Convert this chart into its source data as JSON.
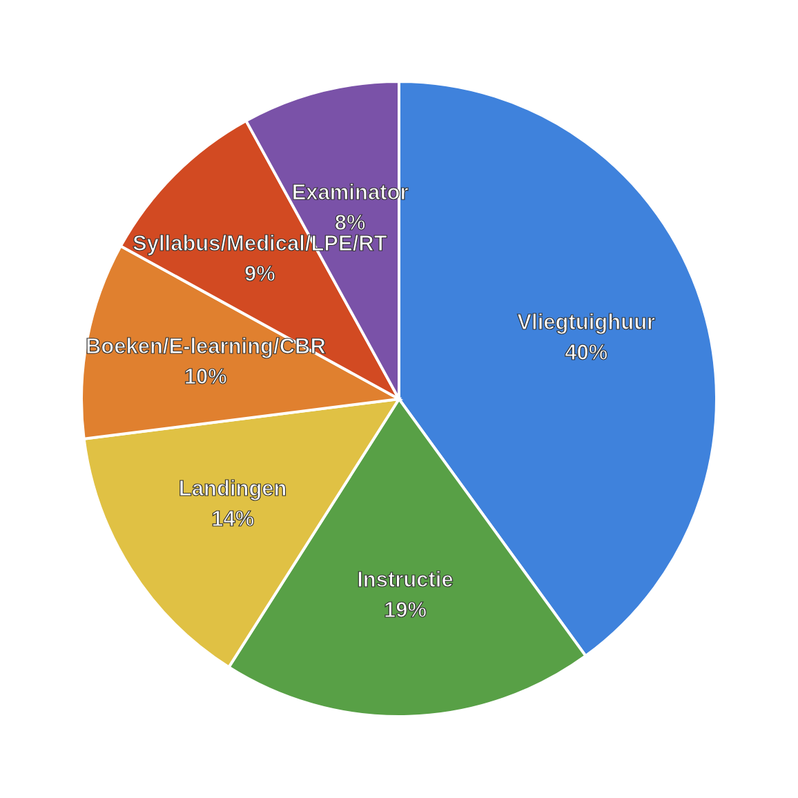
{
  "chart_data": {
    "type": "pie",
    "categories": [
      "Vliegtuighuur",
      "Instructie",
      "Landingen",
      "Boeken/E-learning/CBR",
      "Syllabus/Medical/LPE/RT",
      "Examinator"
    ],
    "values": [
      40,
      19,
      14,
      10,
      9,
      8
    ],
    "value_labels": [
      "40%",
      "19%",
      "14%",
      "10%",
      "9%",
      "8%"
    ],
    "colors": [
      "#3f82dc",
      "#58a046",
      "#e0c144",
      "#e0802f",
      "#d24a22",
      "#7a52a8"
    ],
    "legend": false
  }
}
